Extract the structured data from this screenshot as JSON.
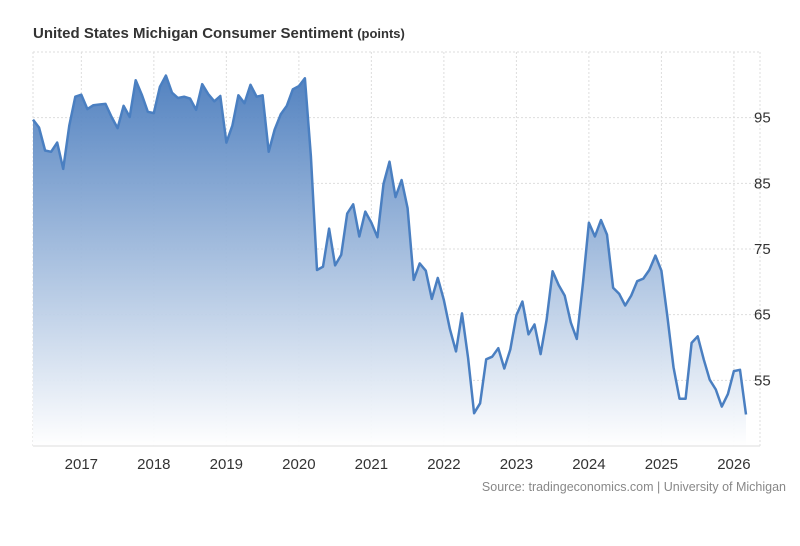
{
  "chart_data": {
    "type": "area",
    "title": "United States Michigan Consumer Sentiment",
    "unit": "(points)",
    "source": "Source: tradingeconomics.com | University of Michigan",
    "xlim": [
      "2016-05",
      "2026-03"
    ],
    "ylim": [
      45,
      105
    ],
    "yticks": [
      55,
      65,
      75,
      85,
      95
    ],
    "xticks": [
      "2017",
      "2018",
      "2019",
      "2020",
      "2021",
      "2022",
      "2023",
      "2024",
      "2025",
      "2026"
    ],
    "grid": true,
    "colors": {
      "line": "#4a7fc1",
      "fill_top": "#4a7cbd",
      "fill_bottom": "#ffffff"
    },
    "start": "2016-05",
    "frequency": "monthly",
    "values": [
      94.7,
      93.5,
      90.0,
      89.8,
      91.2,
      87.2,
      93.8,
      98.2,
      98.5,
      96.3,
      96.9,
      97.0,
      97.1,
      95.1,
      93.4,
      96.8,
      95.1,
      100.7,
      98.5,
      95.9,
      95.7,
      99.7,
      101.4,
      98.8,
      98.0,
      98.2,
      97.9,
      96.2,
      100.1,
      98.6,
      97.5,
      98.3,
      91.2,
      93.8,
      98.4,
      97.2,
      100.0,
      98.2,
      98.4,
      89.8,
      93.2,
      95.5,
      96.8,
      99.3,
      99.8,
      101.0,
      89.1,
      71.8,
      72.3,
      78.1,
      72.5,
      74.1,
      80.4,
      81.8,
      76.9,
      80.7,
      79.0,
      76.8,
      84.9,
      88.3,
      82.9,
      85.5,
      81.2,
      70.3,
      72.8,
      71.7,
      67.4,
      70.6,
      67.2,
      62.8,
      59.4,
      65.2,
      58.4,
      50.0,
      51.5,
      58.2,
      58.6,
      59.9,
      56.8,
      59.7,
      64.9,
      67.0,
      62.0,
      63.5,
      59.0,
      64.2,
      71.6,
      69.5,
      67.9,
      63.8,
      61.3,
      69.7,
      79.0,
      76.9,
      79.4,
      77.2,
      69.1,
      68.2,
      66.4,
      67.9,
      70.1,
      70.5,
      71.8,
      74.0,
      71.7,
      64.7,
      57.0,
      52.2,
      52.2,
      60.7,
      61.7,
      58.2,
      55.1,
      53.6,
      51.0,
      52.9,
      56.4,
      56.6,
      49.8
    ]
  }
}
